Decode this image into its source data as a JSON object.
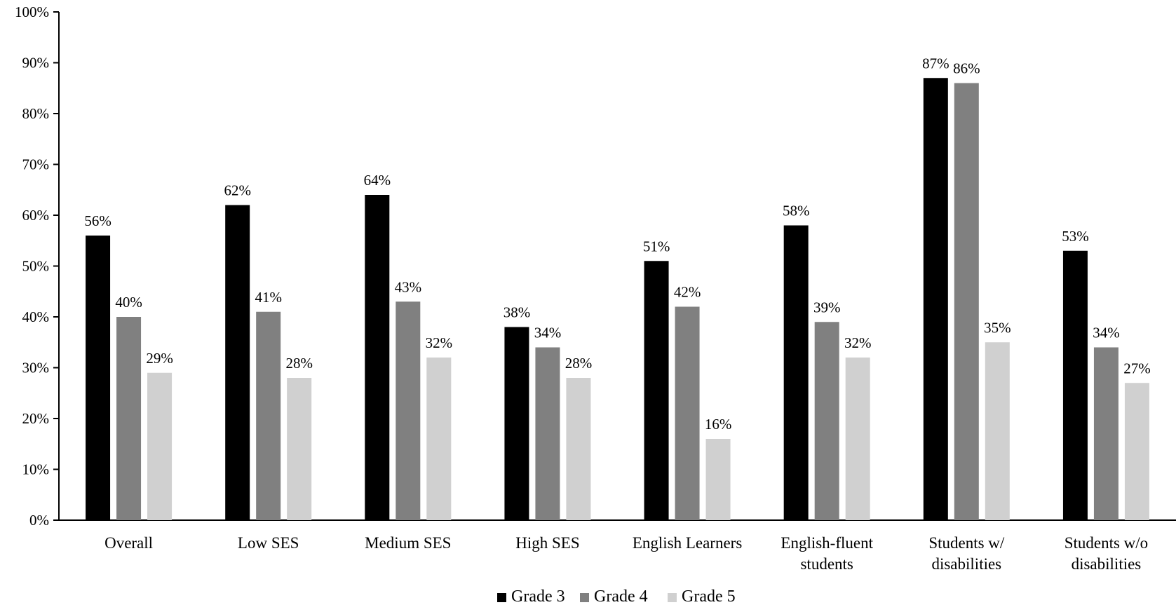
{
  "chart_data": {
    "type": "bar",
    "title": "",
    "xlabel": "",
    "ylabel": "",
    "ylim": [
      0,
      100
    ],
    "y_ticks": [
      0,
      10,
      20,
      30,
      40,
      50,
      60,
      70,
      80,
      90,
      100
    ],
    "y_tick_suffix": "%",
    "grid": false,
    "legend_position": "bottom-center",
    "categories": [
      [
        "Overall"
      ],
      [
        "Low SES"
      ],
      [
        "Medium SES"
      ],
      [
        "High SES"
      ],
      [
        "English Learners"
      ],
      [
        "English-fluent",
        "students"
      ],
      [
        "Students w/",
        "disabilities"
      ],
      [
        "Students w/o",
        "disabilities"
      ]
    ],
    "series": [
      {
        "name": "Grade 3",
        "color": "#000000",
        "values": [
          56,
          62,
          64,
          38,
          51,
          58,
          87,
          53
        ],
        "labels": [
          "56%",
          "62%",
          "64%",
          "38%",
          "51%",
          "58%",
          "87%",
          "53%"
        ]
      },
      {
        "name": "Grade 4",
        "color": "#808080",
        "values": [
          40,
          41,
          43,
          34,
          42,
          39,
          86,
          34
        ],
        "labels": [
          "40%",
          "41%",
          "43%",
          "34%",
          "42%",
          "39%",
          "86%",
          "34%"
        ]
      },
      {
        "name": "Grade 5",
        "color": "#d0d0d0",
        "values": [
          29,
          28,
          32,
          28,
          16,
          32,
          35,
          27
        ],
        "labels": [
          "29%",
          "28%",
          "32%",
          "28%",
          "16%",
          "32%",
          "35%",
          "27%"
        ]
      }
    ]
  }
}
